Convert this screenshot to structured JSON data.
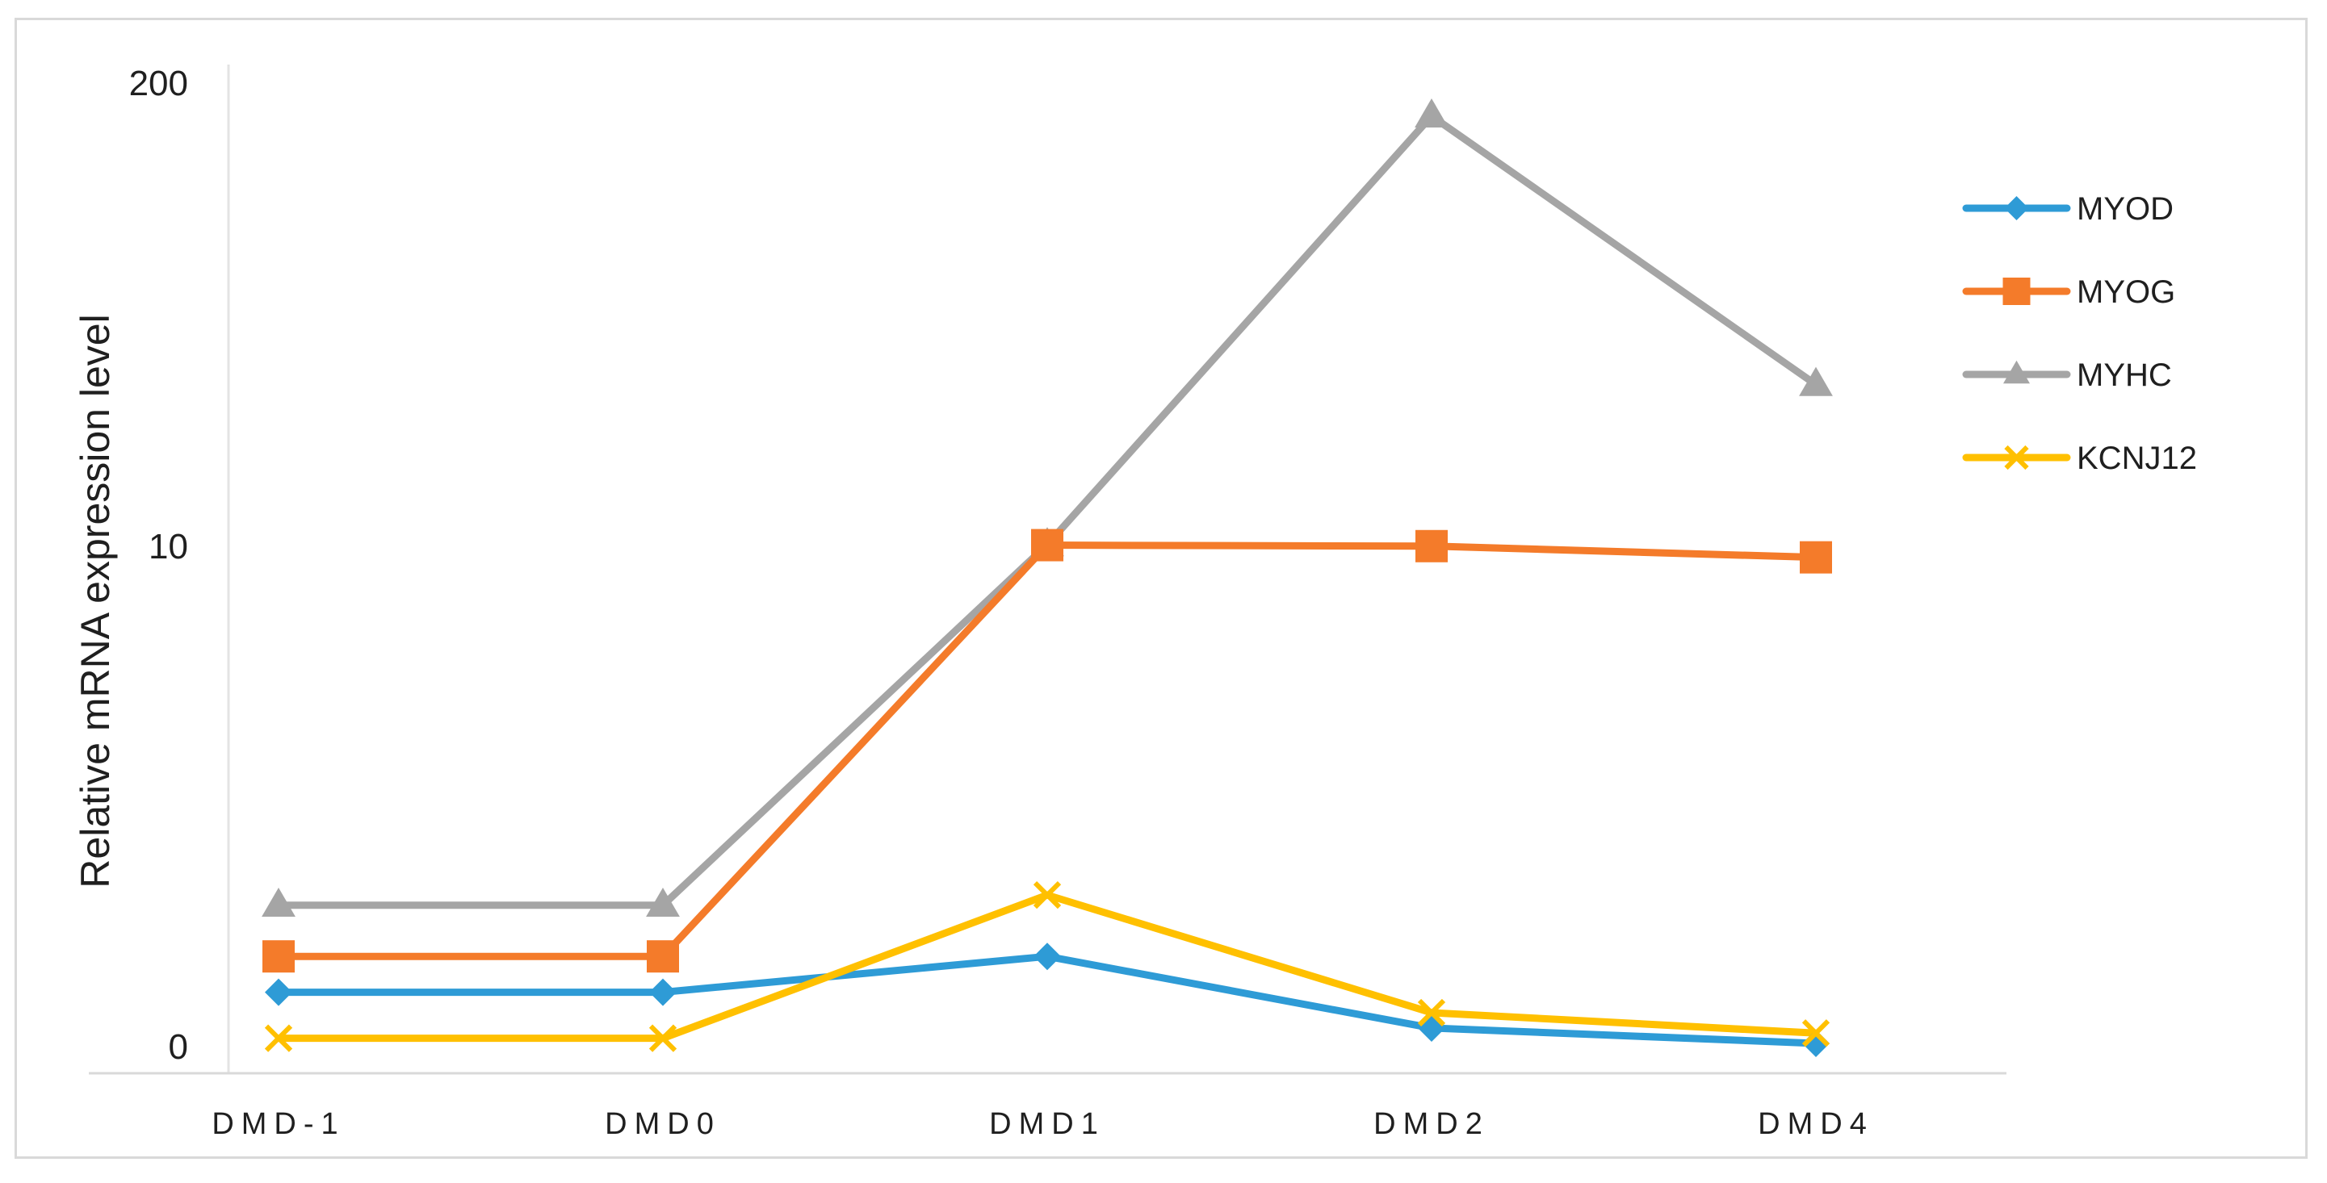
{
  "chart_data": {
    "type": "line",
    "title": "",
    "xlabel": "",
    "ylabel": "Relative mRNA expression level",
    "categories": [
      "DMD-1",
      "DMD0",
      "DMD1",
      "DMD2",
      "DMD4"
    ],
    "y_ticks": [
      "0",
      "10",
      "200"
    ],
    "y_scale": "broken (segments 0–10 and 10–200, equal height)",
    "ylim": [
      0,
      200
    ],
    "grid": false,
    "legend_position": "right",
    "series": [
      {
        "name": "MYOD",
        "color": "#2e9bd6",
        "marker": "diamond",
        "values": [
          1.3,
          1.3,
          2.0,
          0.6,
          0.3
        ]
      },
      {
        "name": "MYOG",
        "color": "#f47b2a",
        "marker": "square",
        "values": [
          2.0,
          2.0,
          10.8,
          10.4,
          9.8
        ]
      },
      {
        "name": "MYHC",
        "color": "#a5a5a5",
        "marker": "triangle",
        "values": [
          3.0,
          3.0,
          11.0,
          185,
          76
        ]
      },
      {
        "name": "KCNJ12",
        "color": "#ffc000",
        "marker": "x",
        "values": [
          0.4,
          0.4,
          3.2,
          0.9,
          0.5
        ]
      }
    ]
  }
}
